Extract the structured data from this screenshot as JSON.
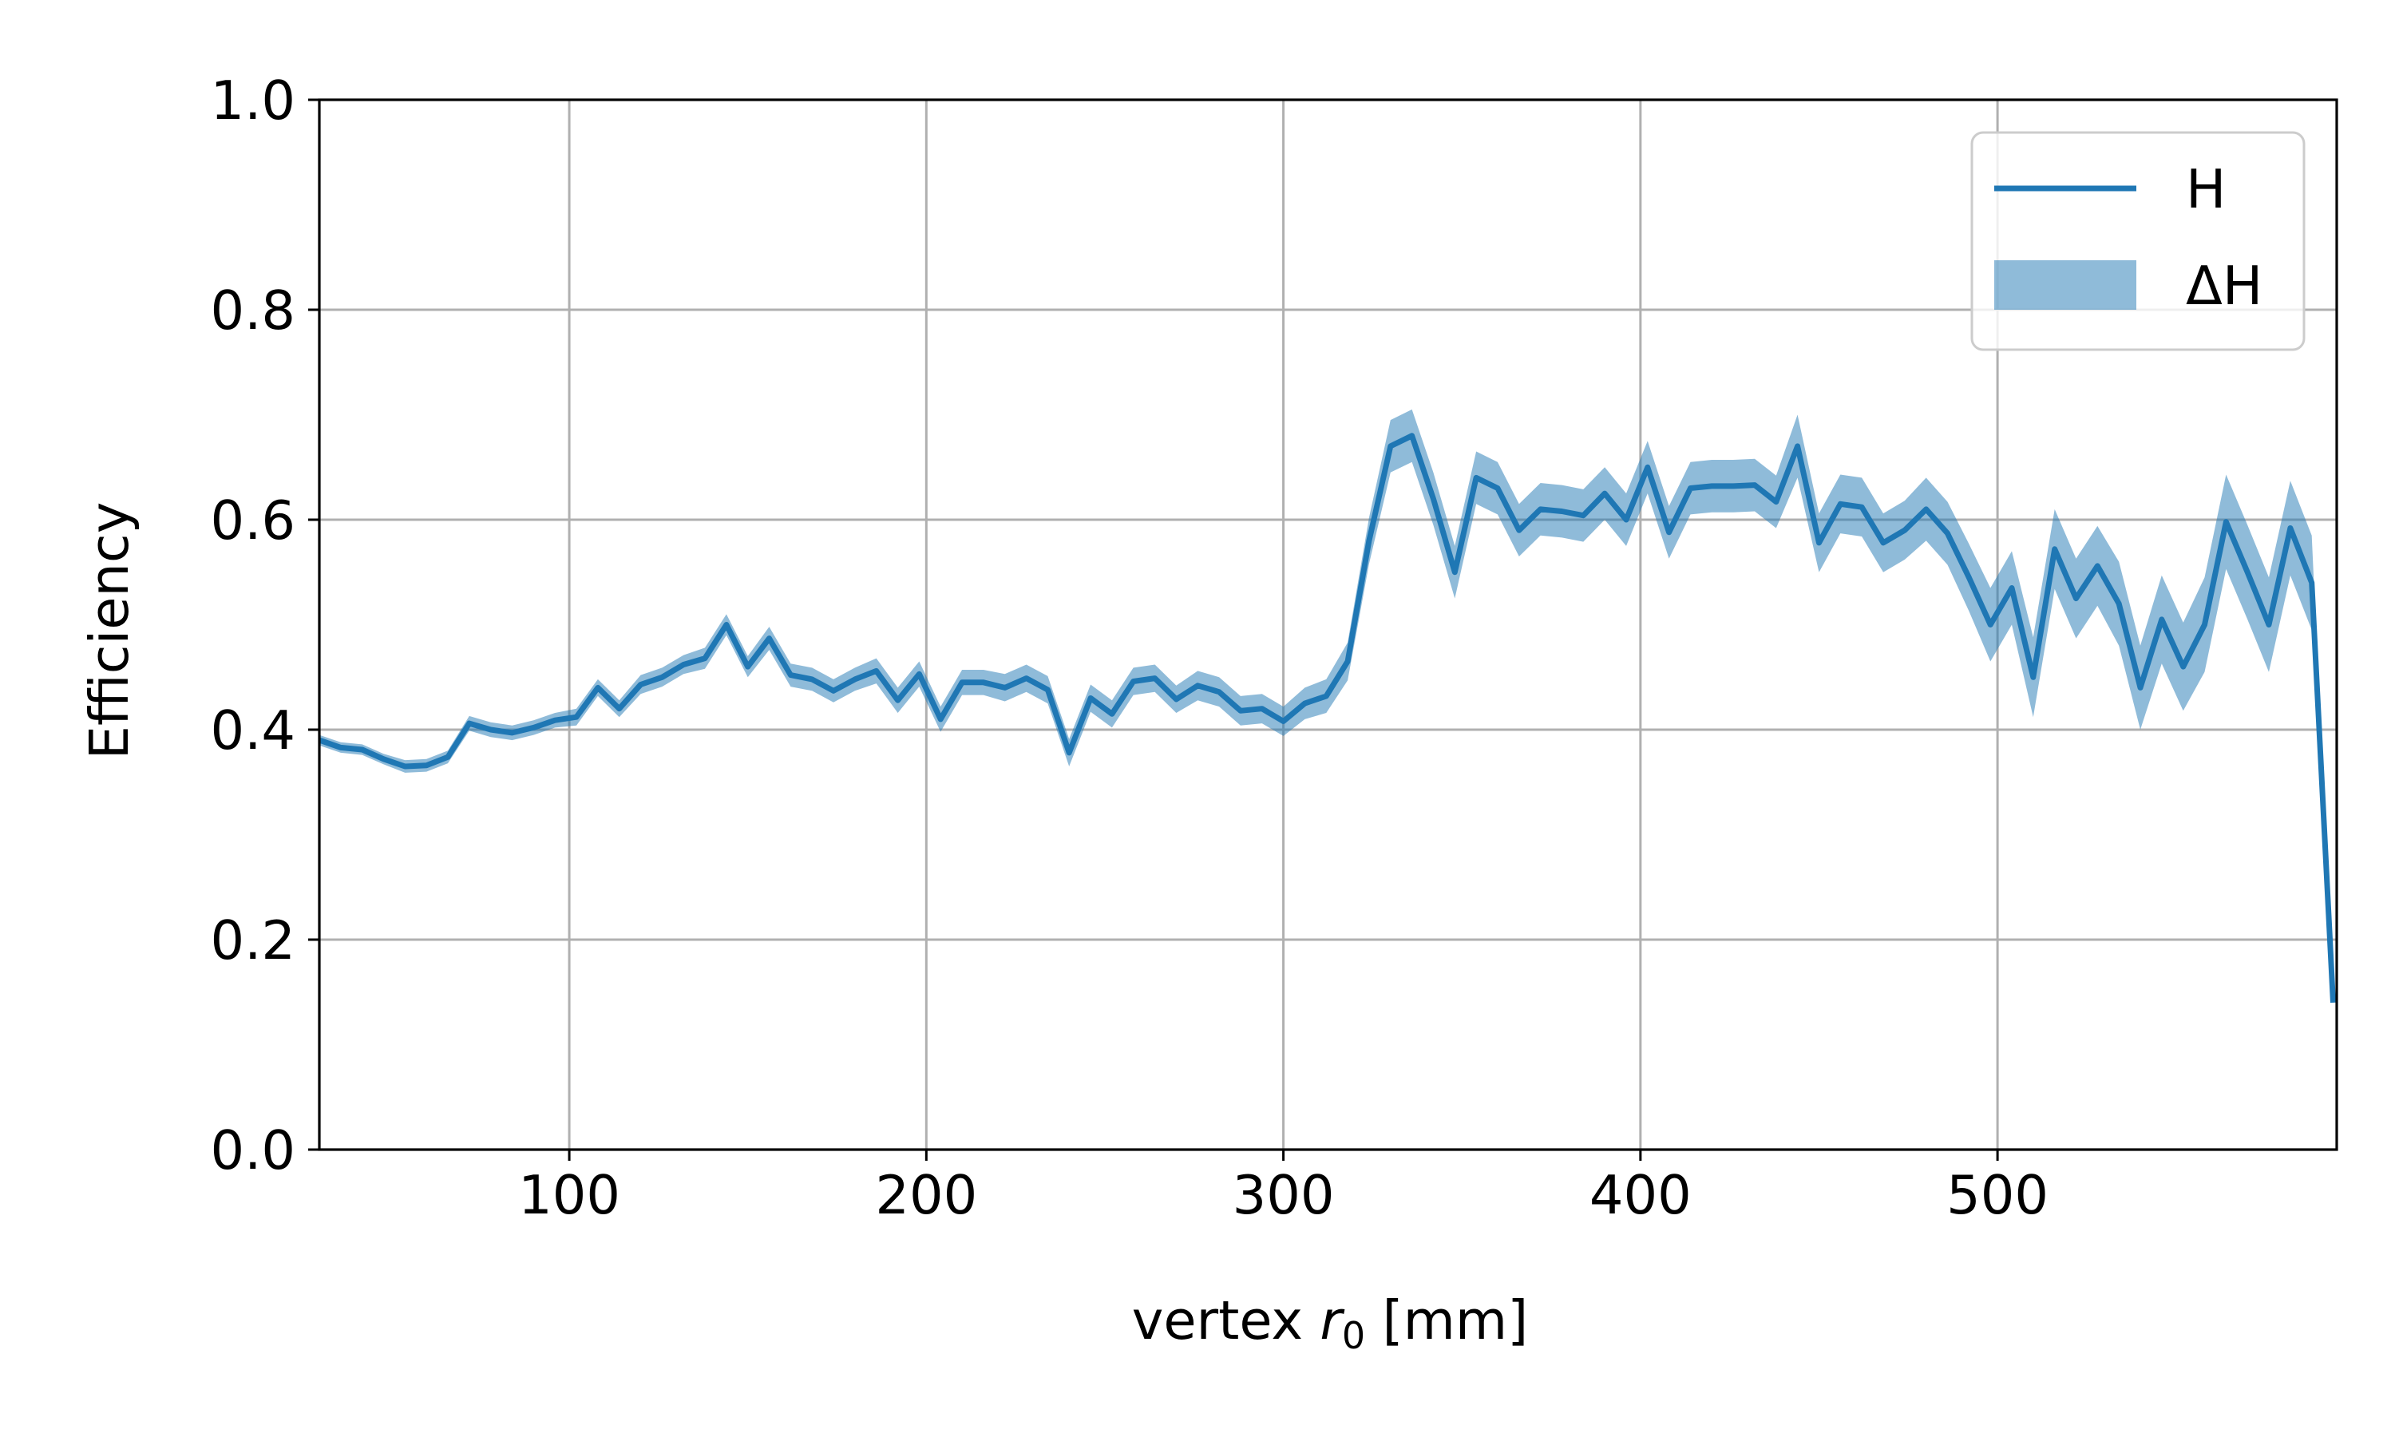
{
  "chart_data": {
    "type": "line",
    "title": "",
    "xlabel_parts": [
      "vertex ",
      "r",
      "0",
      " [mm]"
    ],
    "ylabel": "Efficiency",
    "xlim": [
      30,
      595
    ],
    "ylim": [
      0.0,
      1.0
    ],
    "xticks": [
      100,
      200,
      300,
      400,
      500
    ],
    "yticks": [
      0.0,
      0.2,
      0.4,
      0.6,
      0.8,
      1.0
    ],
    "xtick_labels": [
      "100",
      "200",
      "300",
      "400",
      "500"
    ],
    "ytick_labels": [
      "0.0",
      "0.2",
      "0.4",
      "0.6",
      "0.8",
      "1.0"
    ],
    "grid": true,
    "legend_position": "top-right",
    "colors": {
      "line": "#1f77b4",
      "band": "#1f77b4",
      "grid": "#b0b0b0"
    },
    "series": [
      {
        "name": "H",
        "legend_label": "H",
        "band_legend_label": "ΔH",
        "x": [
          30,
          36,
          42,
          48,
          54,
          60,
          66,
          72,
          78,
          84,
          90,
          96,
          102,
          108,
          114,
          120,
          126,
          132,
          138,
          144,
          150,
          156,
          162,
          168,
          174,
          180,
          186,
          192,
          198,
          204,
          210,
          216,
          222,
          228,
          234,
          240,
          246,
          252,
          258,
          264,
          270,
          276,
          282,
          288,
          294,
          300,
          306,
          312,
          318,
          324,
          330,
          336,
          342,
          348,
          354,
          360,
          366,
          372,
          378,
          384,
          390,
          396,
          402,
          408,
          414,
          420,
          426,
          432,
          438,
          444,
          450,
          456,
          462,
          468,
          474,
          480,
          486,
          492,
          498,
          504,
          510,
          516,
          522,
          528,
          534,
          540,
          546,
          552,
          558,
          564,
          570,
          576,
          582,
          588,
          594
        ],
        "y": [
          0.39,
          0.383,
          0.381,
          0.372,
          0.365,
          0.366,
          0.374,
          0.406,
          0.4,
          0.397,
          0.402,
          0.409,
          0.412,
          0.44,
          0.42,
          0.443,
          0.45,
          0.462,
          0.468,
          0.5,
          0.46,
          0.487,
          0.452,
          0.448,
          0.437,
          0.448,
          0.456,
          0.428,
          0.453,
          0.41,
          0.445,
          0.445,
          0.44,
          0.449,
          0.438,
          0.378,
          0.43,
          0.415,
          0.446,
          0.449,
          0.429,
          0.442,
          0.436,
          0.418,
          0.42,
          0.408,
          0.425,
          0.432,
          0.465,
          0.58,
          0.67,
          0.68,
          0.62,
          0.55,
          0.64,
          0.63,
          0.59,
          0.61,
          0.608,
          0.604,
          0.625,
          0.6,
          0.65,
          0.588,
          0.63,
          0.632,
          0.632,
          0.633,
          0.617,
          0.67,
          0.578,
          0.615,
          0.612,
          0.578,
          0.59,
          0.61,
          0.587,
          0.545,
          0.5,
          0.535,
          0.45,
          0.572,
          0.525,
          0.556,
          0.52,
          0.44,
          0.505,
          0.46,
          0.5,
          0.598,
          0.55,
          0.5,
          0.592,
          0.54,
          0.14
        ],
        "err": [
          0.005,
          0.005,
          0.005,
          0.005,
          0.006,
          0.006,
          0.006,
          0.007,
          0.007,
          0.007,
          0.007,
          0.007,
          0.008,
          0.008,
          0.008,
          0.009,
          0.009,
          0.009,
          0.01,
          0.01,
          0.01,
          0.011,
          0.011,
          0.011,
          0.011,
          0.011,
          0.012,
          0.012,
          0.012,
          0.012,
          0.012,
          0.012,
          0.013,
          0.013,
          0.013,
          0.013,
          0.013,
          0.013,
          0.013,
          0.013,
          0.013,
          0.014,
          0.014,
          0.014,
          0.014,
          0.014,
          0.015,
          0.016,
          0.018,
          0.022,
          0.025,
          0.025,
          0.025,
          0.025,
          0.025,
          0.025,
          0.025,
          0.025,
          0.025,
          0.025,
          0.025,
          0.025,
          0.025,
          0.025,
          0.025,
          0.025,
          0.025,
          0.025,
          0.025,
          0.03,
          0.028,
          0.028,
          0.028,
          0.028,
          0.028,
          0.03,
          0.03,
          0.032,
          0.035,
          0.035,
          0.038,
          0.038,
          0.038,
          0.038,
          0.04,
          0.04,
          0.042,
          0.042,
          0.045,
          0.045,
          0.045,
          0.045,
          0.045,
          0.045,
          0.0
        ]
      }
    ]
  }
}
